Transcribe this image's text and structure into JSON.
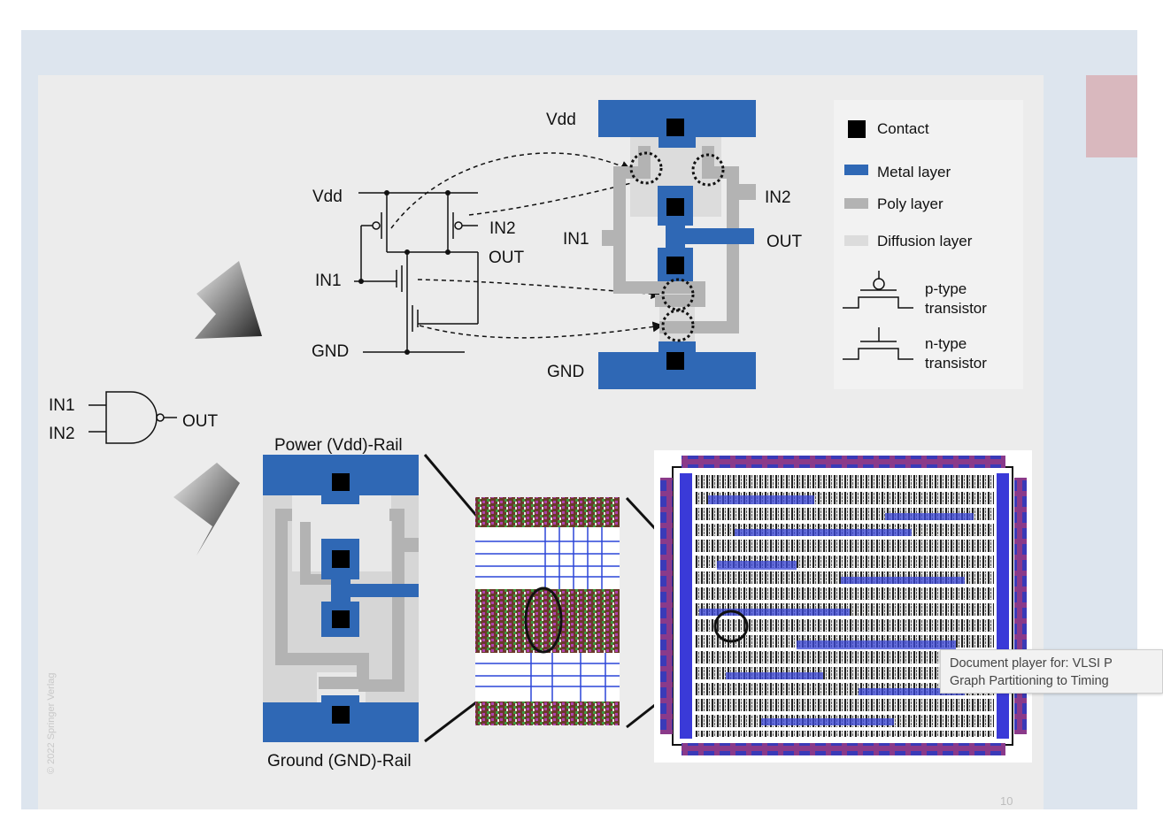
{
  "slide": {
    "schematic": {
      "vdd": "Vdd",
      "gnd": "GND",
      "in1": "IN1",
      "in2": "IN2",
      "out": "OUT"
    },
    "layout_top": {
      "vdd": "Vdd",
      "gnd": "GND",
      "in1": "IN1",
      "in2": "IN2",
      "out": "OUT"
    },
    "legend": {
      "contact": "Contact",
      "metal": "Metal layer",
      "poly": "Poly layer",
      "diffusion": "Diffusion layer",
      "ptype_line1": "p-type",
      "ptype_line2": "transistor",
      "ntype_line1": "n-type",
      "ntype_line2": "transistor"
    },
    "gate": {
      "in1": "IN1",
      "in2": "IN2",
      "out": "OUT"
    },
    "layout_bottom": {
      "power_rail": "Power (Vdd)-Rail",
      "ground_rail": "Ground (GND)-Rail"
    },
    "copyright": "© 2022 Springer Verlag",
    "page_number": "10"
  },
  "tooltip": {
    "line1": "Document player for: VLSI P",
    "line2": "Graph Partitioning to Timing"
  },
  "colors": {
    "metal": "#2f68b5",
    "poly": "#b3b3b3",
    "diffusion": "#dcdcdc",
    "contact": "#000000",
    "viewer_bg": "#dde5ee",
    "slide_bg": "#ececec"
  }
}
